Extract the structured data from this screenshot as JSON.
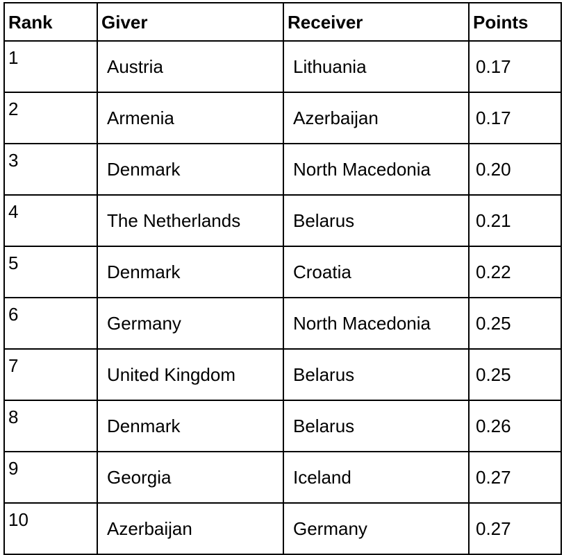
{
  "table": {
    "headers": {
      "rank": "Rank",
      "giver": "Giver",
      "receiver": "Receiver",
      "points": "Points"
    },
    "rows": [
      {
        "rank": "1",
        "giver": "Austria",
        "receiver": "Lithuania",
        "points": "0.17"
      },
      {
        "rank": "2",
        "giver": "Armenia",
        "receiver": "Azerbaijan",
        "points": "0.17"
      },
      {
        "rank": "3",
        "giver": "Denmark",
        "receiver": "North Macedonia",
        "points": "0.20"
      },
      {
        "rank": "4",
        "giver": "The Netherlands",
        "receiver": "Belarus",
        "points": "0.21"
      },
      {
        "rank": "5",
        "giver": "Denmark",
        "receiver": "Croatia",
        "points": "0.22"
      },
      {
        "rank": "6",
        "giver": "Germany",
        "receiver": "North Macedonia",
        "points": "0.25"
      },
      {
        "rank": "7",
        "giver": "United Kingdom",
        "receiver": "Belarus",
        "points": "0.25"
      },
      {
        "rank": "8",
        "giver": "Denmark",
        "receiver": "Belarus",
        "points": "0.26"
      },
      {
        "rank": "9",
        "giver": "Georgia",
        "receiver": "Iceland",
        "points": "0.27"
      },
      {
        "rank": "10",
        "giver": "Azerbaijan",
        "receiver": "Germany",
        "points": "0.27"
      }
    ]
  }
}
